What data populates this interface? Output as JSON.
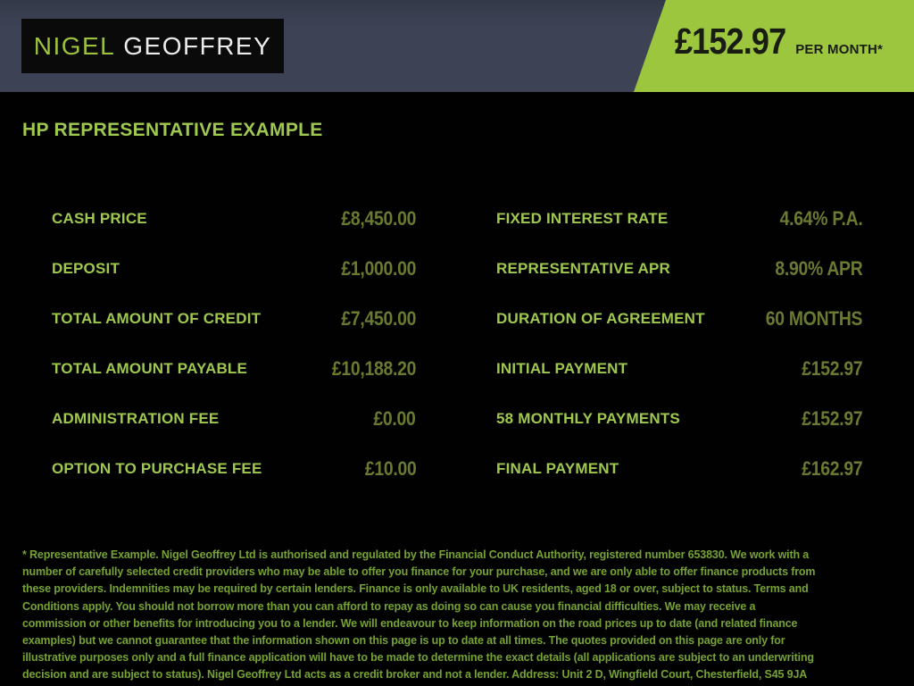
{
  "brand": {
    "first": "NIGEL",
    "second": "GEOFFREY"
  },
  "price_banner": {
    "amount": "£152.97",
    "per": "PER MONTH*"
  },
  "heading": "HP REPRESENTATIVE EXAMPLE",
  "finance": {
    "left": [
      {
        "label": "CASH PRICE",
        "value": "£8,450.00"
      },
      {
        "label": "DEPOSIT",
        "value": "£1,000.00"
      },
      {
        "label": "TOTAL AMOUNT OF CREDIT",
        "value": "£7,450.00"
      },
      {
        "label": "TOTAL AMOUNT PAYABLE",
        "value": "£10,188.20"
      },
      {
        "label": "ADMINISTRATION FEE",
        "value": "£0.00"
      },
      {
        "label": "OPTION TO PURCHASE FEE",
        "value": "£10.00"
      }
    ],
    "right": [
      {
        "label": "FIXED INTEREST RATE",
        "value": "4.64% P.A."
      },
      {
        "label": "REPRESENTATIVE APR",
        "value": "8.90% APR"
      },
      {
        "label": "DURATION OF AGREEMENT",
        "value": "60 MONTHS"
      },
      {
        "label": "INITIAL PAYMENT",
        "value": "£152.97"
      },
      {
        "label": "58 MONTHLY PAYMENTS",
        "value": "£152.97"
      },
      {
        "label": "FINAL PAYMENT",
        "value": "£162.97"
      }
    ]
  },
  "disclaimer": "* Representative Example. Nigel Geoffrey Ltd is authorised and regulated by the Financial Conduct Authority, registered number 653830. We work with a number of carefully selected credit providers who may be able to offer you finance for your purchase, and we are only able to offer finance products from these providers. Indemnities may be required by certain lenders. Finance is only available to UK residents, aged 18 or over, subject to status. Terms and Conditions apply. You should not borrow more than you can afford to repay as doing so can cause you financial difficulties. We may receive a commission or other benefits for introducing you to a lender. We will endeavour to keep information on the road prices up to date (and related finance examples) but we cannot guarantee that the information shown on this page is up to date at all times. The quotes provided on this page are only for illustrative purposes only and a full finance application will have to be made to determine the exact details (all applications are subject to an underwriting decision and are subject to status). Nigel Geoffrey Ltd acts as a credit broker and not a lender. Address: Unit 2 D, Wingfield Court, Chesterfield, S45 9JA",
  "colors": {
    "header_slate": "#3d4355",
    "accent_green": "#9dc63f",
    "label_green": "#9fc84f",
    "value_olive": "#6a7a31",
    "disclaimer_green": "#76a233",
    "banner_text": "#191c12"
  }
}
